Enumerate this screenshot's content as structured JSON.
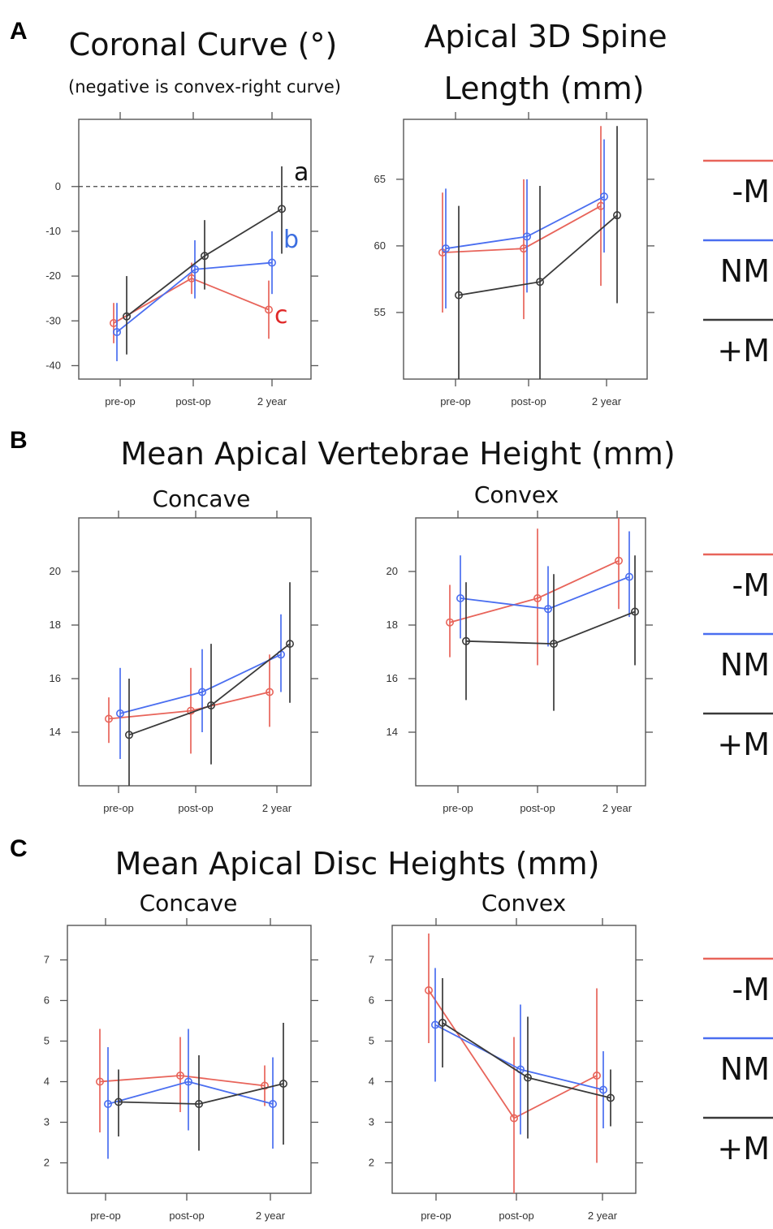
{
  "colors": {
    "-M": "#e8645a",
    "NM": "#4a6ef0",
    "+M": "#3a3a3a",
    "axis": "#555555",
    "dash": "#444444"
  },
  "panel_labels": [
    "A",
    "B",
    "C"
  ],
  "headings": {
    "A_left_title": "Coronal Curve (°)",
    "A_left_subtitle": "(negative is convex-right curve)",
    "A_right_title_line1": "Apical 3D Spine",
    "A_right_title_line2": "Length (mm)",
    "B_title": "Mean Apical Vertebrae Height (mm)",
    "C_title": "Mean Apical Disc Heights (mm)"
  },
  "chart_data": [
    {
      "id": "A1",
      "type": "line",
      "title": "Coronal Curve (°)",
      "subtitle": "(negative is convex-right curve)",
      "categories": [
        "pre-op",
        "post-op",
        "2 year"
      ],
      "ylim": [
        -43,
        15
      ],
      "yticks": [
        0,
        -10,
        -20,
        -30,
        -40
      ],
      "reference_line": 0,
      "series": [
        {
          "name": "-M",
          "values": [
            -30.5,
            -20.5,
            -27.5
          ],
          "lower": [
            -35,
            -24,
            -34
          ],
          "upper": [
            -26,
            -17,
            -21
          ]
        },
        {
          "name": "NM",
          "values": [
            -32.5,
            -18.5,
            -17
          ],
          "lower": [
            -39,
            -25,
            -24
          ],
          "upper": [
            -26,
            -12,
            -10
          ]
        },
        {
          "name": "+M",
          "values": [
            -29,
            -15.5,
            -5
          ],
          "lower": [
            -37.5,
            -23,
            -15
          ],
          "upper": [
            -20,
            -7.5,
            4.5
          ]
        }
      ],
      "annotations": [
        {
          "text": "a",
          "series": "+M"
        },
        {
          "text": "b",
          "series": "NM"
        },
        {
          "text": "c",
          "series": "-M"
        }
      ]
    },
    {
      "id": "A2",
      "type": "line",
      "title": "Apical 3D Spine Length (mm)",
      "categories": [
        "pre-op",
        "post-op",
        "2 year"
      ],
      "ylim": [
        50,
        69.5
      ],
      "yticks": [
        55,
        60,
        65
      ],
      "series": [
        {
          "name": "-M",
          "values": [
            59.5,
            59.8,
            63
          ],
          "lower": [
            55,
            54.5,
            57
          ],
          "upper": [
            64,
            65,
            69
          ]
        },
        {
          "name": "NM",
          "values": [
            59.8,
            60.7,
            63.7
          ],
          "lower": [
            55.3,
            56.5,
            59.5
          ],
          "upper": [
            64.3,
            65,
            68
          ]
        },
        {
          "name": "+M",
          "values": [
            56.3,
            57.3,
            62.3
          ],
          "lower": [
            50,
            50,
            55.7
          ],
          "upper": [
            63,
            64.5,
            69
          ]
        }
      ]
    },
    {
      "id": "B1",
      "type": "line",
      "title": "Concave",
      "categories": [
        "pre-op",
        "post-op",
        "2 year"
      ],
      "ylim": [
        12,
        22
      ],
      "yticks": [
        14,
        16,
        18,
        20
      ],
      "series": [
        {
          "name": "-M",
          "values": [
            14.5,
            14.8,
            15.5
          ],
          "lower": [
            13.6,
            13.2,
            14.2
          ],
          "upper": [
            15.3,
            16.4,
            16.9
          ]
        },
        {
          "name": "NM",
          "values": [
            14.7,
            15.5,
            16.9
          ],
          "lower": [
            13.0,
            14.0,
            15.5
          ],
          "upper": [
            16.4,
            17.1,
            18.4
          ]
        },
        {
          "name": "+M",
          "values": [
            13.9,
            15.0,
            17.3
          ],
          "lower": [
            12.0,
            12.8,
            15.1
          ],
          "upper": [
            16.0,
            17.3,
            19.6
          ]
        }
      ]
    },
    {
      "id": "B2",
      "type": "line",
      "title": "Convex",
      "categories": [
        "pre-op",
        "post-op",
        "2 year"
      ],
      "ylim": [
        12,
        22
      ],
      "yticks": [
        14,
        16,
        18,
        20
      ],
      "series": [
        {
          "name": "-M",
          "values": [
            18.1,
            19.0,
            20.4
          ],
          "lower": [
            16.8,
            16.5,
            18.6
          ],
          "upper": [
            19.5,
            21.6,
            22.0
          ]
        },
        {
          "name": "NM",
          "values": [
            19.0,
            18.6,
            19.8
          ],
          "lower": [
            17.5,
            17.2,
            18.3
          ],
          "upper": [
            20.6,
            20.2,
            21.5
          ]
        },
        {
          "name": "+M",
          "values": [
            17.4,
            17.3,
            18.5
          ],
          "lower": [
            15.2,
            14.8,
            16.5
          ],
          "upper": [
            19.6,
            19.9,
            20.6
          ]
        }
      ]
    },
    {
      "id": "C1",
      "type": "line",
      "title": "Concave",
      "categories": [
        "pre-op",
        "post-op",
        "2 year"
      ],
      "ylim": [
        1.25,
        7.85
      ],
      "yticks": [
        2,
        3,
        4,
        5,
        6,
        7
      ],
      "series": [
        {
          "name": "-M",
          "values": [
            4.0,
            4.15,
            3.9
          ],
          "lower": [
            2.75,
            3.25,
            3.4
          ],
          "upper": [
            5.3,
            5.1,
            4.4
          ]
        },
        {
          "name": "NM",
          "values": [
            3.45,
            4.0,
            3.45
          ],
          "lower": [
            2.1,
            2.8,
            2.35
          ],
          "upper": [
            4.85,
            5.3,
            4.6
          ]
        },
        {
          "name": "+M",
          "values": [
            3.5,
            3.45,
            3.95
          ],
          "lower": [
            2.65,
            2.3,
            2.45
          ],
          "upper": [
            4.3,
            4.65,
            5.45
          ]
        }
      ]
    },
    {
      "id": "C2",
      "type": "line",
      "title": "Convex",
      "categories": [
        "pre-op",
        "post-op",
        "2 year"
      ],
      "ylim": [
        1.25,
        7.85
      ],
      "yticks": [
        2,
        3,
        4,
        5,
        6,
        7
      ],
      "series": [
        {
          "name": "-M",
          "values": [
            6.25,
            3.1,
            4.15
          ],
          "lower": [
            4.95,
            1.25,
            2.0
          ],
          "upper": [
            7.65,
            5.1,
            6.3
          ]
        },
        {
          "name": "NM",
          "values": [
            5.4,
            4.3,
            3.8
          ],
          "lower": [
            4.0,
            2.7,
            2.85
          ],
          "upper": [
            6.8,
            5.9,
            4.75
          ]
        },
        {
          "name": "+M",
          "values": [
            5.45,
            4.1,
            3.6
          ],
          "lower": [
            4.35,
            2.6,
            2.9
          ],
          "upper": [
            6.55,
            5.6,
            4.3
          ]
        }
      ]
    }
  ],
  "legend": [
    "-M",
    "NM",
    "+M"
  ]
}
